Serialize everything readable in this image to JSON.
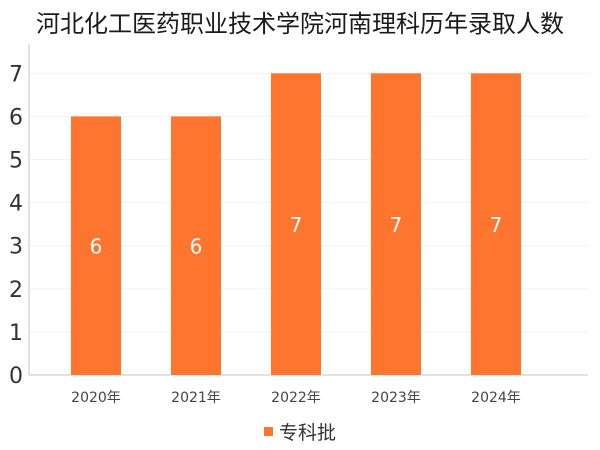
{
  "chart_data": {
    "type": "bar",
    "title": "河北化工医药职业技术学院河南理科历年录取人数",
    "categories": [
      "2020年",
      "2021年",
      "2022年",
      "2023年",
      "2024年"
    ],
    "series": [
      {
        "name": "专科批",
        "values": [
          6,
          6,
          7,
          7,
          7
        ],
        "color": "#fe7530"
      }
    ],
    "xlabel": "",
    "ylabel": "",
    "ylim": [
      0,
      7
    ],
    "yticks": [
      0,
      1,
      2,
      3,
      4,
      5,
      6,
      7
    ],
    "grid": true,
    "legend_position": "bottom",
    "data_labels": true
  }
}
